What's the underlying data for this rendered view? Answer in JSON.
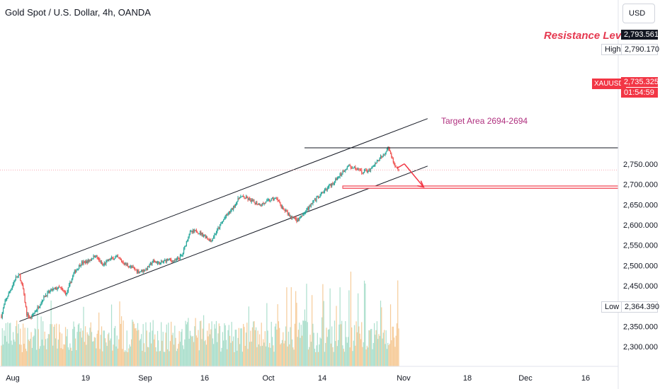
{
  "header": {
    "title": "Gold Spot / U.S. Dollar, 4h, OANDA",
    "currency_button": "USD"
  },
  "annotations": {
    "resistance": "Resistance Level",
    "target": "Target Area 2694-2694"
  },
  "price_labels": {
    "resistance_value": "2,793.561",
    "high_label": "High",
    "high_value": "2,790.170",
    "symbol": "XAUUSD",
    "current_value": "2,735.325",
    "countdown": "01:54:59",
    "low_label": "Low",
    "low_value": "2,364.390"
  },
  "colors": {
    "bull": "#26a69a",
    "bear": "#ef5350",
    "annotation": "#e53950",
    "target_zone": "#f23645"
  },
  "chart_data": {
    "type": "candlestick",
    "x_ticks": [
      "Aug",
      "19",
      "Sep",
      "16",
      "Oct",
      "14",
      "Nov",
      "18",
      "Dec",
      "16"
    ],
    "y_ticks": [
      "2,300.000",
      "2,350.000",
      "2,400.000",
      "2,450.000",
      "2,500.000",
      "2,550.000",
      "2,600.000",
      "2,650.000",
      "2,700.000",
      "2,750.000"
    ],
    "ylim": [
      2270,
      2830
    ],
    "price_path": [
      [
        0,
        2375
      ],
      [
        1,
        2410
      ],
      [
        3,
        2450
      ],
      [
        4,
        2470
      ],
      [
        5,
        2475
      ],
      [
        6,
        2440
      ],
      [
        7,
        2380
      ],
      [
        8,
        2370
      ],
      [
        10,
        2395
      ],
      [
        12,
        2425
      ],
      [
        14,
        2440
      ],
      [
        16,
        2445
      ],
      [
        18,
        2430
      ],
      [
        20,
        2480
      ],
      [
        22,
        2505
      ],
      [
        24,
        2510
      ],
      [
        26,
        2525
      ],
      [
        28,
        2500
      ],
      [
        30,
        2515
      ],
      [
        32,
        2520
      ],
      [
        34,
        2505
      ],
      [
        36,
        2495
      ],
      [
        38,
        2485
      ],
      [
        40,
        2490
      ],
      [
        42,
        2510
      ],
      [
        44,
        2505
      ],
      [
        46,
        2515
      ],
      [
        48,
        2510
      ],
      [
        50,
        2525
      ],
      [
        52,
        2580
      ],
      [
        54,
        2585
      ],
      [
        56,
        2575
      ],
      [
        58,
        2560
      ],
      [
        60,
        2590
      ],
      [
        62,
        2620
      ],
      [
        64,
        2640
      ],
      [
        66,
        2670
      ],
      [
        68,
        2665
      ],
      [
        70,
        2655
      ],
      [
        72,
        2650
      ],
      [
        74,
        2660
      ],
      [
        76,
        2665
      ],
      [
        78,
        2640
      ],
      [
        80,
        2620
      ],
      [
        82,
        2610
      ],
      [
        84,
        2630
      ],
      [
        86,
        2655
      ],
      [
        88,
        2670
      ],
      [
        90,
        2690
      ],
      [
        92,
        2705
      ],
      [
        94,
        2725
      ],
      [
        96,
        2745
      ],
      [
        98,
        2740
      ],
      [
        100,
        2730
      ],
      [
        102,
        2735
      ],
      [
        104,
        2755
      ],
      [
        106,
        2775
      ],
      [
        107,
        2790
      ],
      [
        108,
        2770
      ],
      [
        109,
        2740
      ],
      [
        110,
        2735
      ]
    ],
    "resistance_level": 2793.561,
    "channel": {
      "lower": [
        [
          5,
          2362
        ],
        [
          118,
          2745
        ]
      ],
      "upper": [
        [
          5,
          2478
        ],
        [
          118,
          2862
        ]
      ]
    },
    "target_zone": [
      2690,
      2696
    ],
    "projection": [
      [
        110,
        2740
      ],
      [
        113,
        2693
      ]
    ]
  }
}
